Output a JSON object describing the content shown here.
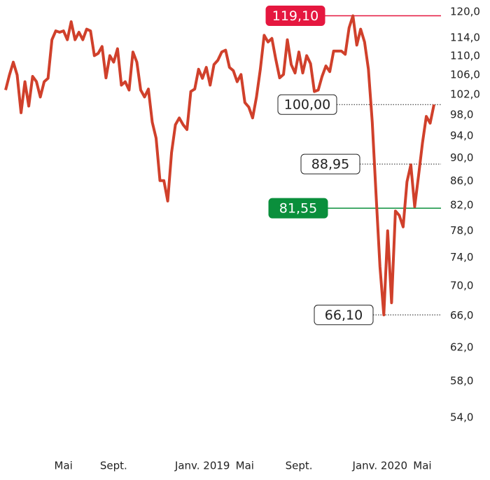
{
  "chart_data": {
    "type": "line",
    "ylog": true,
    "color": "#d0402b",
    "values": [
      102.9,
      106,
      108.7,
      106,
      98.4,
      104.6,
      99.7,
      105.7,
      104.6,
      101.5,
      104.6,
      105.3,
      113.6,
      115.6,
      115.3,
      115.6,
      113.6,
      117.7,
      113.6,
      115.3,
      113.6,
      116.0,
      115.6,
      110.1,
      110.6,
      112.1,
      105.4,
      110.1,
      108.7,
      111.6,
      103.9,
      104.6,
      102.9,
      110.9,
      108.7,
      102.9,
      101.5,
      103.1,
      96.6,
      93.6,
      86.1,
      86.1,
      82.7,
      91.0,
      96.1,
      97.4,
      96.1,
      95.2,
      102.6,
      103.1,
      107.2,
      105.3,
      107.6,
      103.9,
      108.2,
      109.1,
      110.9,
      111.3,
      107.6,
      106.9,
      104.6,
      106.1,
      100.4,
      99.5,
      97.4,
      101.5,
      107.2,
      114.6,
      113.1,
      113.9,
      109.4,
      105.4,
      106.1,
      113.6,
      108.2,
      106.4,
      110.9,
      106.4,
      110.1,
      108.4,
      102.6,
      102.9,
      105.7,
      107.9,
      106.7,
      111.1,
      111.1,
      111.1,
      110.4,
      116.3,
      119.1,
      112.4,
      116.0,
      113.1,
      107.2,
      96.6,
      83.6,
      72.7,
      66.1,
      78.0,
      67.7,
      81.1,
      80.4,
      78.6,
      85.9,
      88.8,
      81.8,
      86.9,
      92.7,
      97.7,
      96.4,
      100.0
    ],
    "xlim": [
      0,
      111
    ],
    "xticks": [
      {
        "value": 15,
        "label": "Mai"
      },
      {
        "value": 28,
        "label": "Sept."
      },
      {
        "value": 51,
        "label": "Janv. 2019"
      },
      {
        "value": 62,
        "label": "Mai"
      },
      {
        "value": 76,
        "label": "Sept."
      },
      {
        "value": 97,
        "label": "Janv. 2020"
      },
      {
        "value": 108,
        "label": "Mai"
      }
    ],
    "ylim": [
      54,
      120
    ],
    "yticks": [
      {
        "value": 120,
        "label": "120,0"
      },
      {
        "value": 114,
        "label": "114,0"
      },
      {
        "value": 110,
        "label": "110,0"
      },
      {
        "value": 106,
        "label": "106,0"
      },
      {
        "value": 102,
        "label": "102,0"
      },
      {
        "value": 98,
        "label": "98,0"
      },
      {
        "value": 94,
        "label": "94,0"
      },
      {
        "value": 90,
        "label": "90,0"
      },
      {
        "value": 86,
        "label": "86,0"
      },
      {
        "value": 82,
        "label": "82,0"
      },
      {
        "value": 78,
        "label": "78,0"
      },
      {
        "value": 74,
        "label": "74,0"
      },
      {
        "value": 70,
        "label": "70,0"
      },
      {
        "value": 66,
        "label": "66,0"
      },
      {
        "value": 62,
        "label": "62,0"
      },
      {
        "value": 58,
        "label": "58,0"
      },
      {
        "value": 54,
        "label": "54,0"
      }
    ],
    "annotations": [
      {
        "value": 119.1,
        "label": "119,10",
        "color": "#e5173f",
        "style": "solid"
      },
      {
        "value": 100,
        "label": "100,00",
        "color": "#222222",
        "style": "dotted"
      },
      {
        "value": 88.95,
        "label": "88,95",
        "color": "#222222",
        "style": "dotted"
      },
      {
        "value": 81.55,
        "label": "81,55",
        "color": "#0a8f3c",
        "style": "solid"
      },
      {
        "value": 66.1,
        "label": "66,10",
        "color": "#222222",
        "style": "dotted"
      }
    ]
  }
}
